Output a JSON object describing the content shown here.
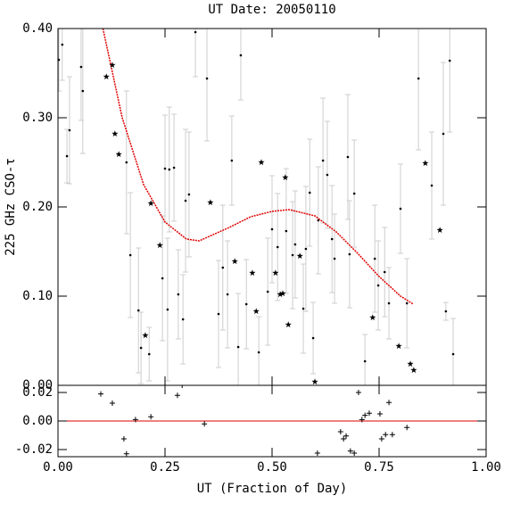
{
  "chart_data": [
    {
      "type": "scatter",
      "title": "UT Date: 20050110",
      "ylabel": "225 GHz CSO-τ",
      "xlim": [
        0,
        1
      ],
      "ylim": [
        0,
        0.4
      ],
      "yticks": [
        {
          "value": 0,
          "label": "0.00"
        },
        {
          "value": 0.1,
          "label": "0.10"
        },
        {
          "value": 0.2,
          "label": "0.20"
        },
        {
          "value": 0.3,
          "label": "0.30"
        },
        {
          "value": 0.4,
          "label": "0.40"
        }
      ],
      "points": {
        "color": "#000000",
        "error_color": "#cccccc",
        "x": [
          0.002,
          0.01,
          0.021,
          0.027,
          0.054,
          0.058,
          0.16,
          0.169,
          0.188,
          0.194,
          0.213,
          0.25,
          0.244,
          0.256,
          0.26,
          0.271,
          0.281,
          0.292,
          0.298,
          0.306,
          0.321,
          0.348,
          0.375,
          0.385,
          0.396,
          0.406,
          0.421,
          0.427,
          0.44,
          0.469,
          0.49,
          0.5,
          0.513,
          0.533,
          0.548,
          0.554,
          0.573,
          0.579,
          0.588,
          0.596,
          0.608,
          0.619,
          0.629,
          0.64,
          0.646,
          0.677,
          0.681,
          0.692,
          0.717,
          0.74,
          0.748,
          0.763,
          0.773,
          0.8,
          0.815,
          0.842,
          0.873,
          0.9,
          0.906,
          0.915,
          0.923
        ],
        "values": [
          0.365,
          0.382,
          0.257,
          0.286,
          0.357,
          0.33,
          0.25,
          0.146,
          0.084,
          0.042,
          0.035,
          0.243,
          0.12,
          0.085,
          0.242,
          0.244,
          0.102,
          0.074,
          0.207,
          0.214,
          0.396,
          0.344,
          0.08,
          0.132,
          0.102,
          0.252,
          0.043,
          0.37,
          0.091,
          0.037,
          0.105,
          0.175,
          0.155,
          0.173,
          0.146,
          0.158,
          0.086,
          0.153,
          0.216,
          0.053,
          0.185,
          0.252,
          0.236,
          0.164,
          0.142,
          0.256,
          0.147,
          0.215,
          0.027,
          0.142,
          0.112,
          0.127,
          0.092,
          0.198,
          0.092,
          0.344,
          0.224,
          0.282,
          0.083,
          0.364,
          0.035
        ],
        "errors": [
          0.035,
          0.04,
          0.03,
          0.06,
          0.06,
          0.07,
          0.08,
          0.07,
          0.07,
          0.04,
          0.03,
          0.06,
          0.07,
          0.08,
          0.07,
          0.06,
          0.05,
          0.05,
          0.08,
          0.07,
          0.05,
          0.07,
          0.06,
          0.07,
          0.06,
          0.05,
          0.06,
          0.05,
          0.05,
          0.04,
          0.06,
          0.06,
          0.06,
          0.07,
          0.06,
          0.06,
          0.05,
          0.07,
          0.06,
          0.04,
          0.06,
          0.07,
          0.06,
          0.06,
          0.05,
          0.07,
          0.06,
          0.06,
          0.03,
          0.06,
          0.05,
          0.05,
          0.04,
          0.05,
          0.05,
          0.08,
          0.06,
          0.08,
          0.01,
          0.08,
          0.04
        ]
      },
      "stars": {
        "color": "#000000",
        "x": [
          0.113,
          0.127,
          0.133,
          0.142,
          0.217,
          0.204,
          0.238,
          0.356,
          0.413,
          0.454,
          0.463,
          0.475,
          0.508,
          0.519,
          0.525,
          0.531,
          0.538,
          0.565,
          0.6,
          0.735,
          0.796,
          0.823,
          0.831,
          0.858,
          0.892
        ],
        "values": [
          0.346,
          0.359,
          0.282,
          0.259,
          0.204,
          0.056,
          0.157,
          0.205,
          0.139,
          0.126,
          0.083,
          0.25,
          0.126,
          0.102,
          0.103,
          0.233,
          0.068,
          0.145,
          0.004,
          0.076,
          0.044,
          0.024,
          0.017,
          0.249,
          0.174
        ]
      },
      "fit": {
        "color": "#e00000",
        "x": [
          0.105,
          0.15,
          0.2,
          0.25,
          0.3,
          0.33,
          0.4,
          0.45,
          0.5,
          0.54,
          0.6,
          0.65,
          0.7,
          0.75,
          0.8,
          0.83
        ],
        "values": [
          0.4,
          0.3,
          0.225,
          0.183,
          0.164,
          0.162,
          0.177,
          0.189,
          0.195,
          0.197,
          0.19,
          0.172,
          0.148,
          0.122,
          0.1,
          0.091
        ]
      }
    },
    {
      "type": "scatter",
      "xlabel": "UT (Fraction of Day)",
      "xlim": [
        0,
        1
      ],
      "ylim": [
        -0.025,
        0.025
      ],
      "xticks": [
        {
          "value": 0,
          "label": "0.00"
        },
        {
          "value": 0.25,
          "label": "0.25"
        },
        {
          "value": 0.5,
          "label": "0.50"
        },
        {
          "value": 0.75,
          "label": "0.75"
        },
        {
          "value": 1,
          "label": "1.00"
        }
      ],
      "yticks": [
        0.02,
        {
          "value": 0,
          "label": "0.00"
        },
        -0.02
      ],
      "zero_line_color": "#e00000",
      "residuals": {
        "color": "#000000",
        "x": [
          0.1,
          0.127,
          0.154,
          0.16,
          0.181,
          0.217,
          0.279,
          0.29,
          0.342,
          0.606,
          0.66,
          0.667,
          0.673,
          0.683,
          0.692,
          0.702,
          0.71,
          0.717,
          0.727,
          0.752,
          0.756,
          0.765,
          0.773,
          0.781,
          0.815
        ],
        "values": [
          0.019,
          0.0125,
          -0.0125,
          -0.023,
          0.001,
          0.003,
          0.018,
          0.025,
          -0.002,
          -0.0225,
          -0.0075,
          -0.0125,
          -0.0105,
          -0.021,
          -0.0225,
          0.02,
          0.001,
          0.004,
          0.0055,
          0.005,
          -0.0125,
          -0.0095,
          0.013,
          -0.0095,
          -0.0045
        ]
      }
    }
  ]
}
